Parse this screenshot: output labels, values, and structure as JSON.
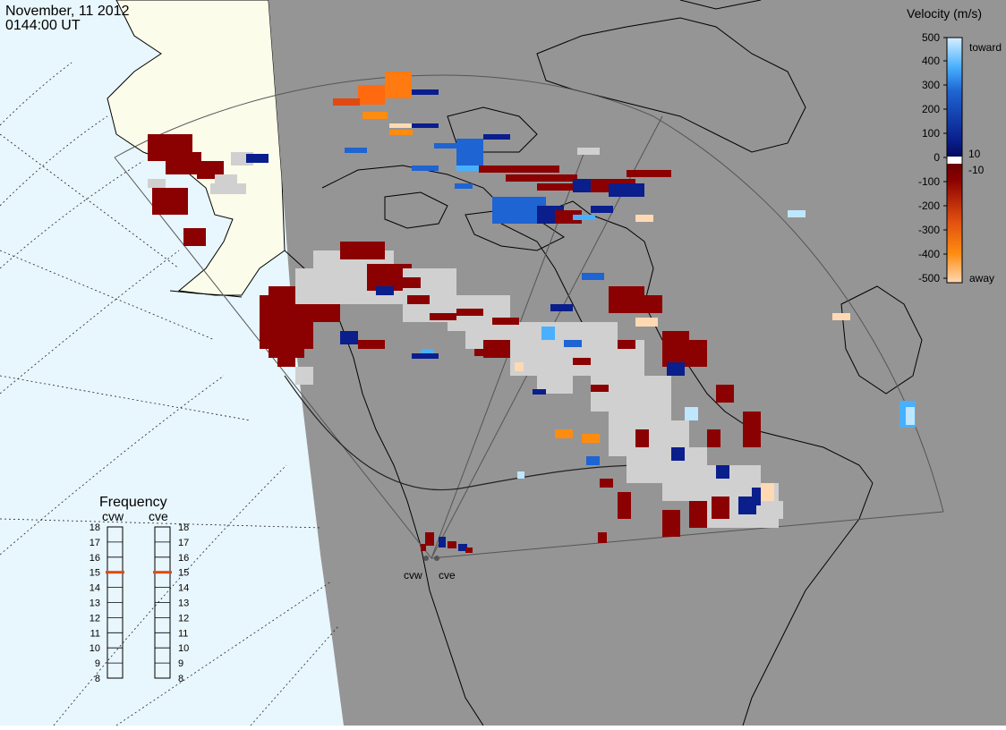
{
  "header": {
    "date": "November, 11 2012",
    "time": "0144:00 UT"
  },
  "legend": {
    "title": "Velocity (m/s)",
    "ticks": [
      "500",
      "400",
      "300",
      "200",
      "100",
      "10",
      "0",
      "-10",
      "-100",
      "-200",
      "-300",
      "-400",
      "-500"
    ],
    "toward_label": "toward",
    "away_label": "away"
  },
  "frequency": {
    "title": "Frequency",
    "left_label": "cvw",
    "right_label": "cve",
    "scale": [
      "18",
      "17",
      "16",
      "15",
      "14",
      "13",
      "12",
      "11",
      "10",
      "9",
      "8"
    ],
    "cvw_value_mhz": 15,
    "cve_value_mhz": 15,
    "marker_color": "#e04a10"
  },
  "radars": {
    "west_label": "cvw",
    "east_label": "cve"
  },
  "colors": {
    "night_gray": "#959595",
    "ocean_day": "#e8f6fd",
    "land_day": "#fcfcea",
    "ground_scatter": "#d0d0d0",
    "toward_dark": "#0a1e8c",
    "toward_light": "#bfe6ff",
    "away_dark": "#8b0000",
    "away_light": "#ffd9b3"
  }
}
